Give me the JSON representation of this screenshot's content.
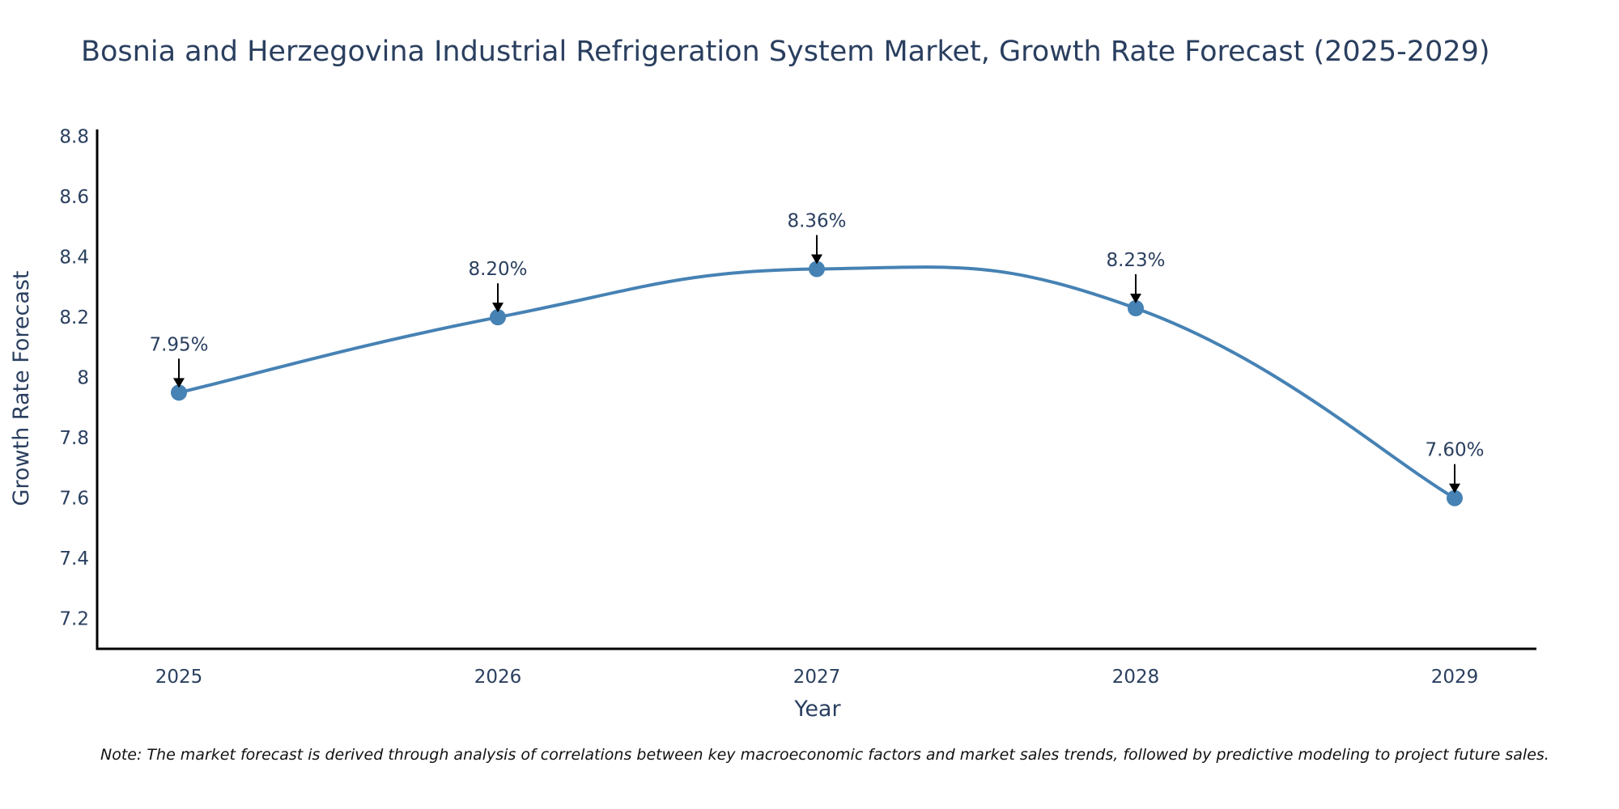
{
  "chart_data": {
    "type": "line",
    "title": "Bosnia and Herzegovina Industrial Refrigeration System Market, Growth Rate Forecast (2025-2029)",
    "xlabel": "Year",
    "ylabel": "Growth Rate Forecast",
    "categories": [
      "2025",
      "2026",
      "2027",
      "2028",
      "2029"
    ],
    "values": [
      7.95,
      8.2,
      8.36,
      8.23,
      7.6
    ],
    "data_labels": [
      "7.95%",
      "8.20%",
      "8.36%",
      "8.23%",
      "7.60%"
    ],
    "ylim": [
      7.1,
      8.85
    ],
    "yticks": [
      7.2,
      7.4,
      7.6,
      7.8,
      8.0,
      8.2,
      8.4,
      8.6,
      8.8
    ],
    "ytick_labels": [
      "7.2",
      "7.4",
      "7.6",
      "7.8",
      "8",
      "8.2",
      "8.4",
      "8.6",
      "8.8"
    ],
    "grid": false,
    "series_color": "#4682b4",
    "note": "Note: The market forecast is derived through analysis of correlations between key macroeconomic factors and market sales trends, followed by predictive modeling to project future sales."
  }
}
